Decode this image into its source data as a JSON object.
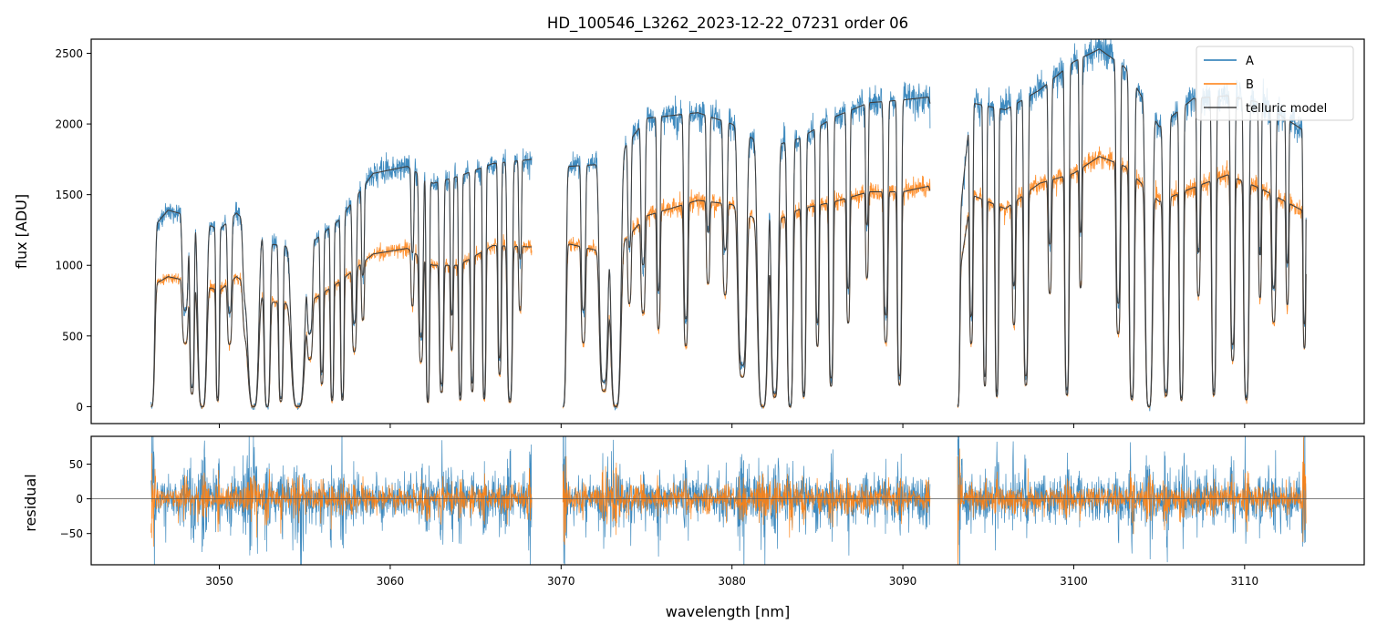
{
  "title": "HD_100546_L3262_2023-12-22_07231  order 06",
  "chart_data": [
    {
      "type": "line",
      "panel": "main",
      "ylabel": "flux [ADU]",
      "xlim": [
        3042.5,
        3117
      ],
      "ylim": [
        -120,
        2600
      ],
      "yticks": [
        0,
        500,
        1000,
        1500,
        2000,
        2500
      ],
      "xticks": [
        3050,
        3060,
        3070,
        3080,
        3090,
        3100,
        3110
      ],
      "legend": "top-right",
      "legend_entries": [
        "A",
        "B",
        "telluric model"
      ],
      "continuum_A": [
        [
          3046.0,
          1250
        ],
        [
          3047.0,
          1390
        ],
        [
          3048.5,
          1340
        ],
        [
          3050.0,
          1250
        ],
        [
          3051.0,
          1370
        ],
        [
          3053.0,
          1150
        ],
        [
          3055.0,
          1120
        ],
        [
          3057.0,
          1320
        ],
        [
          3059.0,
          1650
        ],
        [
          3061.0,
          1700
        ],
        [
          3062.5,
          1580
        ],
        [
          3064.0,
          1630
        ],
        [
          3066.0,
          1720
        ],
        [
          3068.3,
          1750
        ],
        [
          3070.5,
          1700
        ],
        [
          3073.0,
          1720
        ],
        [
          3075.0,
          2040
        ],
        [
          3078.0,
          2080
        ],
        [
          3080.0,
          2000
        ],
        [
          3082.0,
          1830
        ],
        [
          3084.0,
          1900
        ],
        [
          3086.0,
          2050
        ],
        [
          3088.0,
          2150
        ],
        [
          3090.0,
          2170
        ],
        [
          3091.5,
          2190
        ],
        [
          3093.3,
          1300
        ],
        [
          3094.0,
          2150
        ],
        [
          3096.0,
          2100
        ],
        [
          3098.0,
          2240
        ],
        [
          3100.0,
          2440
        ],
        [
          3101.5,
          2530
        ],
        [
          3103.0,
          2400
        ],
        [
          3105.0,
          1980
        ],
        [
          3107.0,
          2180
        ],
        [
          3109.0,
          2200
        ],
        [
          3111.0,
          2150
        ],
        [
          3113.5,
          1950
        ]
      ],
      "continuum_B": [
        [
          3046.0,
          850
        ],
        [
          3047.0,
          920
        ],
        [
          3048.5,
          880
        ],
        [
          3050.0,
          820
        ],
        [
          3051.0,
          920
        ],
        [
          3053.0,
          740
        ],
        [
          3055.0,
          720
        ],
        [
          3057.0,
          880
        ],
        [
          3059.0,
          1080
        ],
        [
          3061.0,
          1120
        ],
        [
          3062.5,
          1000
        ],
        [
          3064.0,
          1000
        ],
        [
          3066.0,
          1140
        ],
        [
          3068.3,
          1130
        ],
        [
          3070.5,
          1150
        ],
        [
          3073.0,
          1080
        ],
        [
          3075.0,
          1350
        ],
        [
          3078.0,
          1460
        ],
        [
          3080.0,
          1430
        ],
        [
          3082.0,
          1280
        ],
        [
          3084.0,
          1400
        ],
        [
          3086.0,
          1450
        ],
        [
          3088.0,
          1520
        ],
        [
          3090.0,
          1520
        ],
        [
          3091.5,
          1560
        ],
        [
          3093.3,
          920
        ],
        [
          3094.0,
          1500
        ],
        [
          3096.0,
          1400
        ],
        [
          3098.0,
          1580
        ],
        [
          3100.0,
          1650
        ],
        [
          3101.5,
          1770
        ],
        [
          3103.0,
          1700
        ],
        [
          3105.0,
          1450
        ],
        [
          3107.0,
          1550
        ],
        [
          3109.0,
          1640
        ],
        [
          3111.0,
          1540
        ],
        [
          3113.5,
          1380
        ]
      ],
      "segments": [
        [
          3046.0,
          3068.3
        ],
        [
          3070.1,
          3091.6
        ],
        [
          3093.2,
          3113.6
        ]
      ],
      "absorption_lines": [
        [
          3046.0,
          0.25,
          1.0
        ],
        [
          3048.0,
          0.2,
          0.5
        ],
        [
          3048.4,
          0.15,
          0.9
        ],
        [
          3049.0,
          0.3,
          1.0
        ],
        [
          3049.9,
          0.12,
          0.95
        ],
        [
          3050.6,
          0.15,
          0.5
        ],
        [
          3051.6,
          0.25,
          0.45
        ],
        [
          3052.0,
          0.35,
          1.0
        ],
        [
          3052.8,
          0.2,
          1.0
        ],
        [
          3053.6,
          0.15,
          0.95
        ],
        [
          3054.6,
          0.45,
          1.0
        ],
        [
          3055.3,
          0.18,
          0.55
        ],
        [
          3056.0,
          0.12,
          0.8
        ],
        [
          3056.6,
          0.12,
          0.95
        ],
        [
          3057.2,
          0.12,
          0.95
        ],
        [
          3057.9,
          0.15,
          0.6
        ],
        [
          3058.4,
          0.1,
          0.4
        ],
        [
          3061.3,
          0.1,
          0.35
        ],
        [
          3061.8,
          0.15,
          0.7
        ],
        [
          3062.2,
          0.12,
          0.97
        ],
        [
          3063.0,
          0.15,
          0.9
        ],
        [
          3063.6,
          0.1,
          0.6
        ],
        [
          3064.1,
          0.12,
          0.95
        ],
        [
          3064.8,
          0.12,
          0.9
        ],
        [
          3065.5,
          0.12,
          0.95
        ],
        [
          3066.4,
          0.12,
          0.8
        ],
        [
          3067.0,
          0.18,
          0.97
        ],
        [
          3067.6,
          0.1,
          0.4
        ],
        [
          3070.1,
          0.22,
          1.0
        ],
        [
          3071.3,
          0.15,
          0.6
        ],
        [
          3072.5,
          0.3,
          0.9
        ],
        [
          3073.2,
          0.35,
          1.0
        ],
        [
          3074.0,
          0.12,
          0.4
        ],
        [
          3074.8,
          0.15,
          0.5
        ],
        [
          3075.7,
          0.12,
          0.6
        ],
        [
          3077.3,
          0.15,
          0.7
        ],
        [
          3078.6,
          0.12,
          0.4
        ],
        [
          3079.6,
          0.15,
          0.45
        ],
        [
          3080.6,
          0.3,
          0.85
        ],
        [
          3081.8,
          0.35,
          1.0
        ],
        [
          3082.5,
          0.25,
          0.95
        ],
        [
          3083.4,
          0.2,
          1.0
        ],
        [
          3084.2,
          0.15,
          0.95
        ],
        [
          3085.0,
          0.12,
          0.7
        ],
        [
          3085.8,
          0.15,
          0.9
        ],
        [
          3086.8,
          0.12,
          0.6
        ],
        [
          3087.9,
          0.1,
          0.4
        ],
        [
          3089.0,
          0.15,
          0.7
        ],
        [
          3089.8,
          0.15,
          0.9
        ],
        [
          3093.2,
          0.15,
          1.0
        ],
        [
          3094.0,
          0.12,
          0.7
        ],
        [
          3094.8,
          0.12,
          0.9
        ],
        [
          3095.5,
          0.12,
          0.95
        ],
        [
          3096.5,
          0.12,
          0.6
        ],
        [
          3097.2,
          0.15,
          0.9
        ],
        [
          3098.6,
          0.12,
          0.5
        ],
        [
          3099.6,
          0.15,
          0.95
        ],
        [
          3100.4,
          0.1,
          0.5
        ],
        [
          3102.6,
          0.15,
          0.7
        ],
        [
          3103.4,
          0.18,
          0.97
        ],
        [
          3104.4,
          0.25,
          1.0
        ],
        [
          3105.4,
          0.2,
          0.95
        ],
        [
          3106.3,
          0.15,
          0.97
        ],
        [
          3107.3,
          0.12,
          0.5
        ],
        [
          3108.2,
          0.15,
          0.95
        ],
        [
          3109.3,
          0.15,
          0.8
        ],
        [
          3110.1,
          0.18,
          0.97
        ],
        [
          3110.9,
          0.1,
          0.5
        ],
        [
          3111.7,
          0.15,
          0.6
        ],
        [
          3112.5,
          0.1,
          0.5
        ],
        [
          3113.5,
          0.1,
          0.7
        ]
      ],
      "series": [
        {
          "name": "A",
          "color": "#1f77b4",
          "continuum_key": "continuum_A"
        },
        {
          "name": "B",
          "color": "#ff7f0e",
          "continuum_key": "continuum_B"
        },
        {
          "name": "telluric model",
          "color": "#404040"
        }
      ]
    },
    {
      "type": "line",
      "panel": "residual",
      "xlabel": "wavelength [nm]",
      "ylabel": "residual",
      "xlim": [
        3042.5,
        3117
      ],
      "ylim": [
        -95,
        90
      ],
      "yticks": [
        -50,
        0,
        50
      ],
      "xticks": [
        3050,
        3060,
        3070,
        3080,
        3090,
        3100,
        3110
      ],
      "zero_line": 0,
      "noise_level_A": 26,
      "noise_level_B": 14
    }
  ],
  "colors": {
    "A": "#1f77b4",
    "B": "#ff7f0e",
    "model": "#404040"
  }
}
